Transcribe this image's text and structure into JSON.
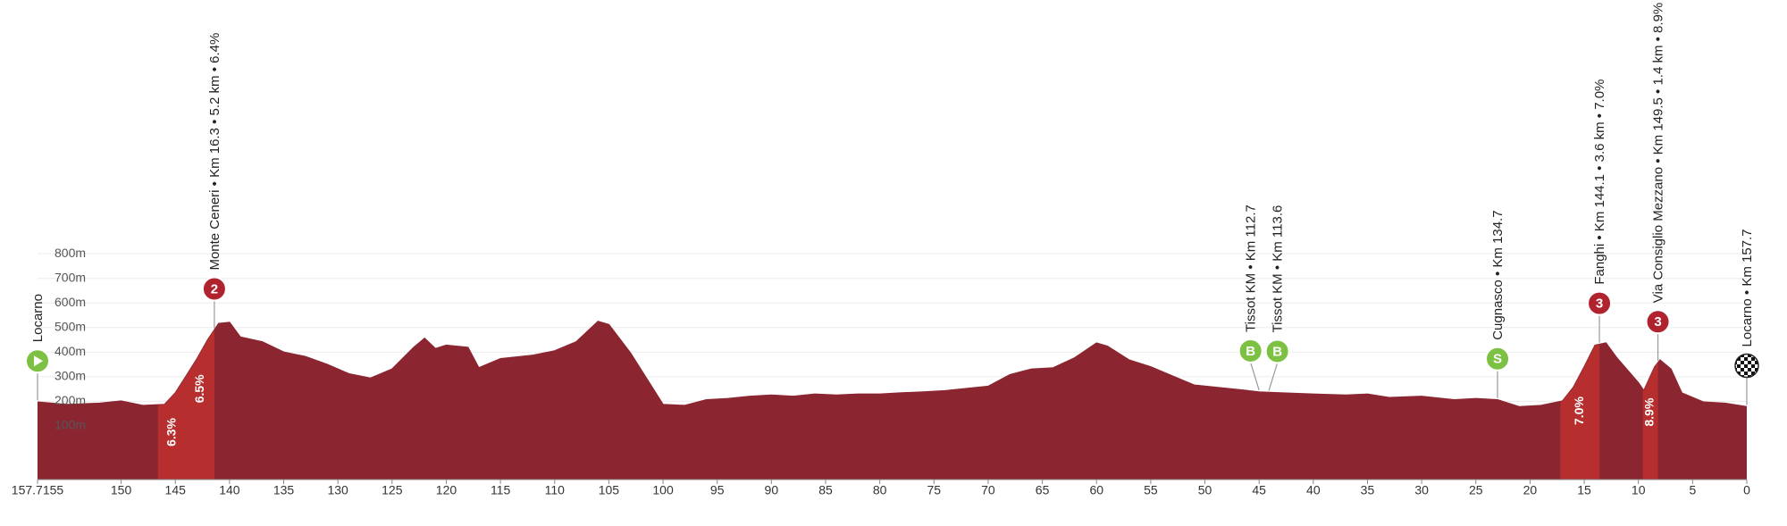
{
  "chart_data": {
    "type": "area",
    "x": [
      157.7155,
      155,
      152,
      150,
      148,
      146,
      145,
      144,
      143,
      142,
      141,
      140,
      139,
      137,
      135,
      133,
      131,
      129,
      127,
      125,
      123,
      122,
      121,
      120,
      118,
      117,
      115,
      112,
      110,
      108,
      106,
      105,
      103,
      101,
      100,
      98,
      96,
      94,
      92,
      90,
      88,
      86,
      84,
      82,
      80,
      78,
      76,
      74,
      72,
      70,
      68,
      66,
      64,
      62,
      60,
      59,
      57,
      55,
      53,
      51,
      49,
      47,
      45,
      43,
      40,
      37,
      35,
      33,
      30,
      27,
      25,
      23,
      21,
      19,
      17,
      16,
      15,
      14,
      13,
      12,
      10,
      9.5,
      8.5,
      8,
      7,
      6,
      4,
      2,
      0
    ],
    "values": [
      197,
      187,
      192,
      201,
      183,
      187,
      234,
      303,
      373,
      451,
      516,
      521,
      461,
      442,
      400,
      382,
      350,
      312,
      294,
      331,
      419,
      456,
      414,
      428,
      419,
      336,
      373,
      387,
      405,
      442,
      525,
      512,
      396,
      257,
      187,
      183,
      206,
      211,
      220,
      225,
      220,
      229,
      225,
      229,
      229,
      234,
      238,
      243,
      252,
      261,
      308,
      331,
      336,
      377,
      437,
      424,
      368,
      340,
      303,
      266,
      257,
      248,
      238,
      234,
      229,
      225,
      229,
      215,
      220,
      206,
      211,
      206,
      178,
      183,
      201,
      257,
      340,
      428,
      437,
      377,
      275,
      243,
      340,
      368,
      331,
      234,
      197,
      192,
      178
    ],
    "color": "#8b2631",
    "climb_color": "#b62f2e",
    "xlim": [
      157.7155,
      0
    ],
    "xticks": [
      157.7155,
      150,
      145,
      140,
      135,
      130,
      125,
      120,
      115,
      110,
      105,
      100,
      95,
      90,
      85,
      80,
      75,
      70,
      65,
      60,
      55,
      50,
      45,
      40,
      35,
      30,
      25,
      20,
      15,
      10,
      5,
      0
    ],
    "ylim": [
      -118,
      1200
    ],
    "yticks": [
      {
        "value": 100,
        "label": "100m"
      },
      {
        "value": 200,
        "label": "200m"
      },
      {
        "value": 300,
        "label": "300m"
      },
      {
        "value": 400,
        "label": "400m"
      },
      {
        "value": 500,
        "label": "500m"
      },
      {
        "value": 600,
        "label": "600m"
      },
      {
        "value": 700,
        "label": "700m"
      },
      {
        "value": 800,
        "label": "800m"
      }
    ],
    "grid": true,
    "climbs": [
      {
        "start": 146.6,
        "end": 141.4,
        "gradients": [
          "6.3%",
          "6.5%"
        ]
      },
      {
        "start": 17.2,
        "end": 13.6,
        "gradients": [
          "7.0%"
        ]
      },
      {
        "start": 9.6,
        "end": 8.2,
        "gradients": [
          "8.9%"
        ]
      }
    ],
    "markers": [
      {
        "km": 157.7155,
        "label": "Locarno",
        "kind": "start"
      },
      {
        "km": 141.4,
        "label": "Monte Ceneri • Km 16.3 • 5.2 km • 6.4%",
        "kind": "climb",
        "icon": "2"
      },
      {
        "km": 45.0,
        "label": "Tissot KM • Km 112.7",
        "kind": "bonus",
        "icon": "B"
      },
      {
        "km": 44.1,
        "label": "Tissot KM • Km 113.6",
        "kind": "bonus",
        "icon": "B"
      },
      {
        "km": 23.0,
        "label": "Cugnasco • Km 134.7",
        "kind": "sprint",
        "icon": "S"
      },
      {
        "km": 13.6,
        "label": "Fanghi • Km 144.1 • 3.6 km • 7.0%",
        "kind": "climb",
        "icon": "3"
      },
      {
        "km": 8.2,
        "label": "Via Consiglio Mezzano • Km 149.5 • 1.4 km • 8.9%",
        "kind": "climb",
        "icon": "3"
      },
      {
        "km": 0,
        "label": "Locarno • Km 157.7",
        "kind": "finish"
      }
    ]
  }
}
